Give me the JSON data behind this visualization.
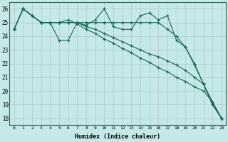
{
  "xlabel": "Humidex (Indice chaleur)",
  "ylabel": "",
  "background_color": "#c5e8e8",
  "grid_color": "#b0c8c8",
  "line_color": "#1a6655",
  "xlim": [
    -0.5,
    23.5
  ],
  "ylim": [
    17.5,
    26.5
  ],
  "xticks": [
    0,
    1,
    2,
    3,
    4,
    5,
    6,
    7,
    8,
    9,
    10,
    11,
    12,
    13,
    14,
    15,
    16,
    17,
    18,
    19,
    20,
    21,
    22,
    23
  ],
  "yticks": [
    18,
    19,
    20,
    21,
    22,
    23,
    24,
    25,
    26
  ],
  "series": [
    [
      24.5,
      26.0,
      25.5,
      25.0,
      25.0,
      23.7,
      23.7,
      25.0,
      24.8,
      25.2,
      26.0,
      24.7,
      24.5,
      24.5,
      25.5,
      25.7,
      25.2,
      25.5,
      23.7,
      23.2,
      21.9,
      20.5,
      19.0,
      18.0
    ],
    [
      24.5,
      26.0,
      25.5,
      25.0,
      25.0,
      25.0,
      25.0,
      25.0,
      25.0,
      25.0,
      25.0,
      25.0,
      25.0,
      25.0,
      25.0,
      25.0,
      25.0,
      24.5,
      24.0,
      23.2,
      22.0,
      20.5,
      19.0,
      18.0
    ],
    [
      24.5,
      26.0,
      25.5,
      25.0,
      25.0,
      25.0,
      25.0,
      25.0,
      24.7,
      24.5,
      24.2,
      23.9,
      23.6,
      23.3,
      23.0,
      22.7,
      22.5,
      22.2,
      21.9,
      21.5,
      21.0,
      20.5,
      19.2,
      18.0
    ],
    [
      24.5,
      26.0,
      25.5,
      25.0,
      25.0,
      25.0,
      25.2,
      24.9,
      24.5,
      24.2,
      23.8,
      23.5,
      23.1,
      22.8,
      22.4,
      22.1,
      21.7,
      21.4,
      21.0,
      20.7,
      20.3,
      20.0,
      19.2,
      18.0
    ]
  ]
}
